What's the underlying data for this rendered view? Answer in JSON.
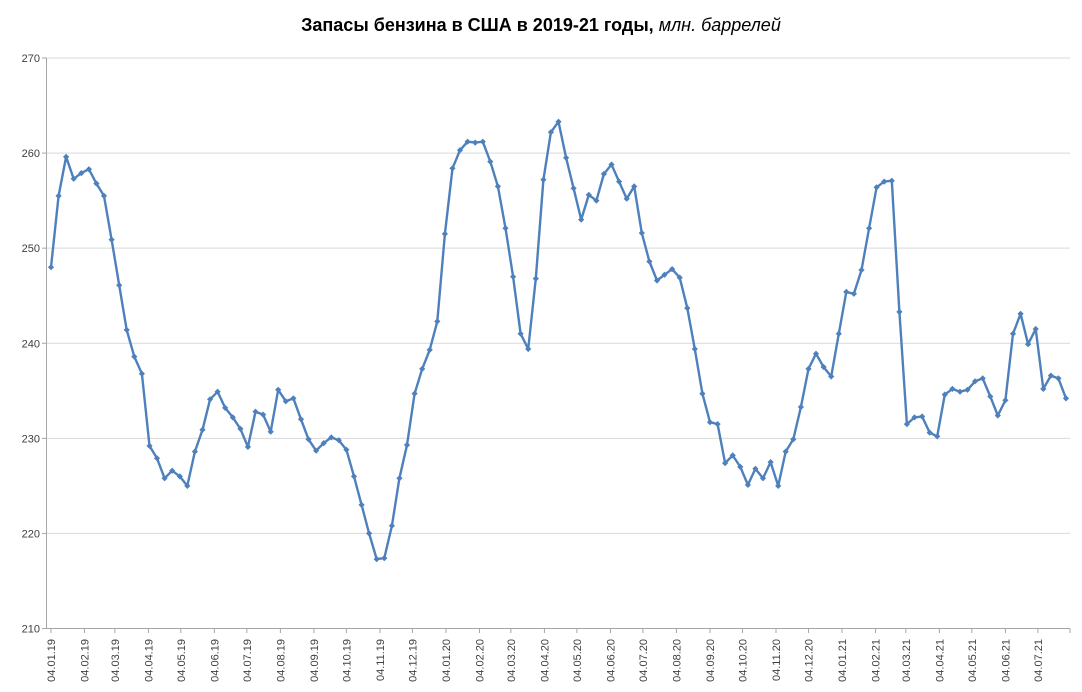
{
  "title": {
    "main": "Запасы бензина в США в 2019-21 годы,",
    "unit": " млн. баррелей"
  },
  "chart_data": {
    "type": "line",
    "series_name": "Запасы бензина в США, млн. баррелей",
    "legend_position": "none",
    "grid": true,
    "marker": "diamond",
    "ylim": [
      210,
      270
    ],
    "y_ticks": [
      210,
      220,
      230,
      240,
      250,
      260,
      270
    ],
    "x_tick_labels": [
      "04.01.19",
      "04.02.19",
      "04.03.19",
      "04.04.19",
      "04.05.19",
      "04.06.19",
      "04.07.19",
      "04.08.19",
      "04.09.19",
      "04.10.19",
      "04.11.19",
      "04.12.19",
      "04.01.20",
      "04.02.20",
      "04.03.20",
      "04.04.20",
      "04.05.20",
      "04.06.20",
      "04.07.20",
      "04.08.20",
      "04.09.20",
      "04.10.20",
      "04.11.20",
      "04.12.20",
      "04.01.21",
      "04.02.21",
      "04.03.21",
      "04.04.21",
      "04.05.21",
      "04.06.21",
      "04.07.21"
    ],
    "x": [
      "04.01.19",
      "11.01.19",
      "18.01.19",
      "25.01.19",
      "01.02.19",
      "08.02.19",
      "15.02.19",
      "22.02.19",
      "01.03.19",
      "08.03.19",
      "15.03.19",
      "22.03.19",
      "29.03.19",
      "05.04.19",
      "12.04.19",
      "19.04.19",
      "26.04.19",
      "03.05.19",
      "10.05.19",
      "17.05.19",
      "24.05.19",
      "31.05.19",
      "07.06.19",
      "14.06.19",
      "21.06.19",
      "28.06.19",
      "05.07.19",
      "12.07.19",
      "19.07.19",
      "26.07.19",
      "02.08.19",
      "09.08.19",
      "16.08.19",
      "23.08.19",
      "30.08.19",
      "06.09.19",
      "13.09.19",
      "20.09.19",
      "27.09.19",
      "04.10.19",
      "11.10.19",
      "18.10.19",
      "25.10.19",
      "01.11.19",
      "08.11.19",
      "15.11.19",
      "22.11.19",
      "29.11.19",
      "06.12.19",
      "13.12.19",
      "20.12.19",
      "27.12.19",
      "03.01.20",
      "10.01.20",
      "17.01.20",
      "24.01.20",
      "31.01.20",
      "07.02.20",
      "14.02.20",
      "21.02.20",
      "28.02.20",
      "06.03.20",
      "13.03.20",
      "20.03.20",
      "27.03.20",
      "03.04.20",
      "10.04.20",
      "17.04.20",
      "24.04.20",
      "01.05.20",
      "08.05.20",
      "15.05.20",
      "22.05.20",
      "29.05.20",
      "05.06.20",
      "12.06.20",
      "19.06.20",
      "26.06.20",
      "03.07.20",
      "10.07.20",
      "17.07.20",
      "24.07.20",
      "31.07.20",
      "07.08.20",
      "14.08.20",
      "21.08.20",
      "28.08.20",
      "04.09.20",
      "11.09.20",
      "18.09.20",
      "25.09.20",
      "02.10.20",
      "09.10.20",
      "16.10.20",
      "23.10.20",
      "30.10.20",
      "06.11.20",
      "13.11.20",
      "20.11.20",
      "27.11.20",
      "04.12.20",
      "11.12.20",
      "18.12.20",
      "25.12.20",
      "01.01.21",
      "08.01.21",
      "15.01.21",
      "22.01.21",
      "29.01.21",
      "05.02.21",
      "12.02.21",
      "19.02.21",
      "26.02.21",
      "05.03.21",
      "12.03.21",
      "19.03.21",
      "26.03.21",
      "02.04.21",
      "09.04.21",
      "16.04.21",
      "23.04.21",
      "30.04.21",
      "07.05.21",
      "14.05.21",
      "21.05.21",
      "28.05.21",
      "04.06.21",
      "11.06.21",
      "18.06.21",
      "25.06.21",
      "02.07.21",
      "09.07.21",
      "16.07.21",
      "23.07.21",
      "30.07.21"
    ],
    "values": [
      248.0,
      255.5,
      259.6,
      257.3,
      257.9,
      258.3,
      256.8,
      255.5,
      250.9,
      246.1,
      241.4,
      238.6,
      236.8,
      229.2,
      227.9,
      225.8,
      226.6,
      226.0,
      225.0,
      228.6,
      230.9,
      234.1,
      234.9,
      233.2,
      232.2,
      231.0,
      229.1,
      232.8,
      232.5,
      230.7,
      235.1,
      233.9,
      234.2,
      232.0,
      229.9,
      228.7,
      229.5,
      230.1,
      229.8,
      228.8,
      226.0,
      223.0,
      220.0,
      217.3,
      217.4,
      220.8,
      225.8,
      229.3,
      234.7,
      237.3,
      239.3,
      242.3,
      251.5,
      258.4,
      260.3,
      261.2,
      261.1,
      261.2,
      259.1,
      256.5,
      252.1,
      247.0,
      241.0,
      239.4,
      246.8,
      257.2,
      262.2,
      263.3,
      259.5,
      256.3,
      253.0,
      255.6,
      255.0,
      257.8,
      258.8,
      257.0,
      255.2,
      256.5,
      251.6,
      248.6,
      246.6,
      247.2,
      247.8,
      246.9,
      243.7,
      239.4,
      234.7,
      231.7,
      231.5,
      227.4,
      228.2,
      227.0,
      225.1,
      226.8,
      225.8,
      227.5,
      225.0,
      228.6,
      229.9,
      233.3,
      237.3,
      238.9,
      237.5,
      236.5,
      241.0,
      245.4,
      245.2,
      247.7,
      252.1,
      256.4,
      257.0,
      257.1,
      243.3,
      231.5,
      232.2,
      232.3,
      230.6,
      230.2,
      234.6,
      235.2,
      234.9,
      235.1,
      236.0,
      236.3,
      234.4,
      232.4,
      234.0,
      241.0,
      243.1,
      239.9,
      241.5,
      235.2,
      236.6,
      236.3,
      234.2
    ]
  },
  "colors": {
    "line": "#4E80BC",
    "marker": "#4E80BC",
    "grid": "#D9D9D9",
    "axis": "#A6A6A6",
    "tick_label": "#404040",
    "title": "#000000",
    "background": "#FFFFFF"
  }
}
